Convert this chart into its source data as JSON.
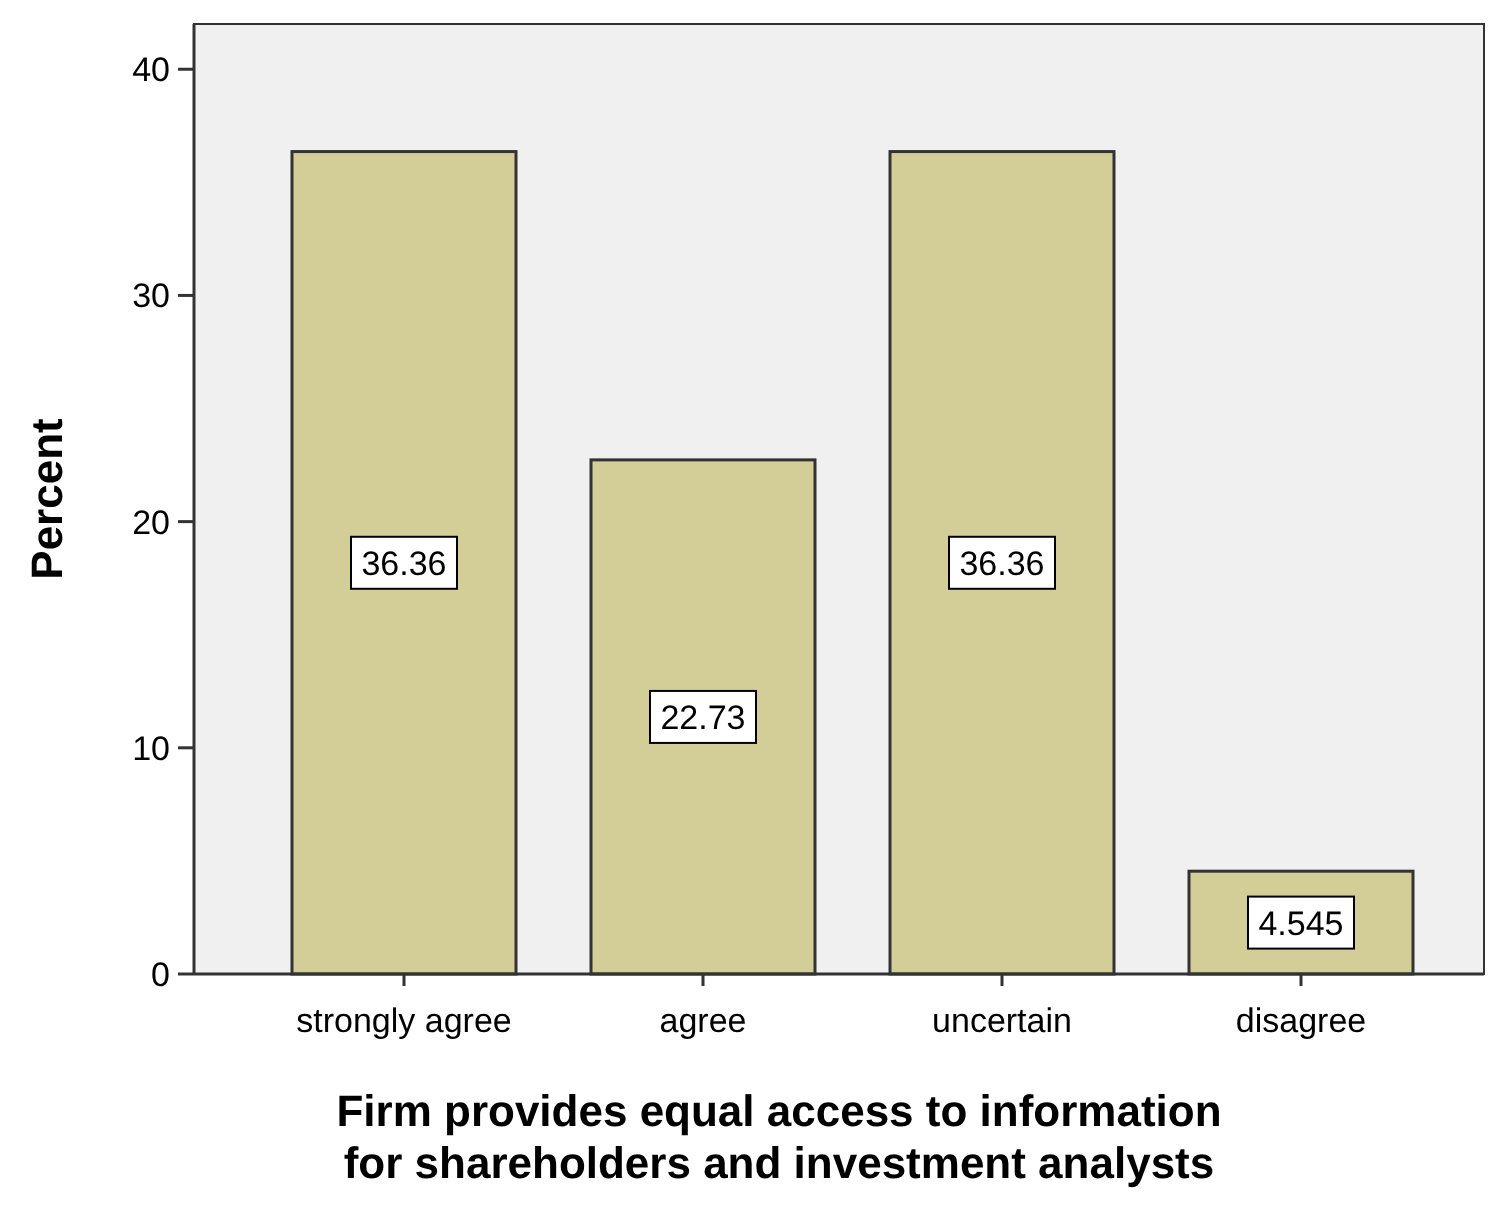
{
  "chart_data": {
    "type": "bar",
    "xlabel": "Firm provides equal access to information\nfor shareholders and investment analysts",
    "ylabel": "Percent",
    "categories": [
      "strongly agree",
      "agree",
      "uncertain",
      "disagree"
    ],
    "values": [
      36.36,
      22.73,
      36.36,
      4.545
    ],
    "color": "#d3ce98",
    "ylim": [
      0,
      42
    ],
    "yticks": [
      0,
      10,
      20,
      30,
      40
    ],
    "grid": false,
    "data_labels": true
  }
}
